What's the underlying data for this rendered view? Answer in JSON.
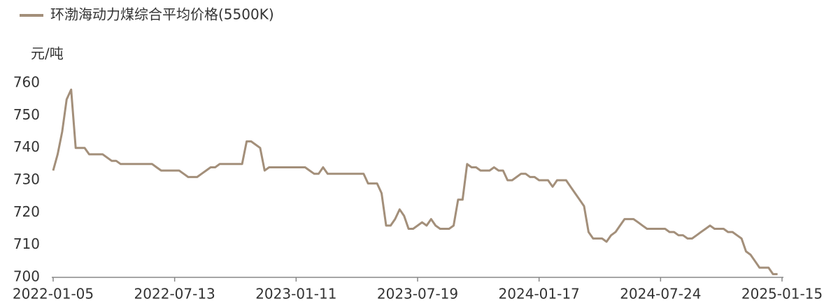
{
  "chart_data": {
    "type": "line",
    "y_label": "元/吨",
    "categories": [
      "2022-01-05",
      null,
      null,
      null,
      null,
      null,
      null,
      null,
      null,
      null,
      null,
      null,
      null,
      null,
      null,
      null,
      null,
      null,
      null,
      null,
      null,
      null,
      null,
      null,
      null,
      null,
      null,
      "2022-07-13",
      null,
      null,
      null,
      null,
      null,
      null,
      null,
      null,
      null,
      null,
      null,
      null,
      null,
      null,
      null,
      null,
      null,
      null,
      null,
      null,
      null,
      null,
      null,
      null,
      null,
      null,
      "2023-01-11",
      null,
      null,
      null,
      null,
      null,
      null,
      null,
      null,
      null,
      null,
      null,
      null,
      null,
      null,
      null,
      null,
      null,
      null,
      null,
      null,
      null,
      null,
      null,
      null,
      null,
      null,
      "2023-07-19",
      null,
      null,
      null,
      null,
      null,
      null,
      null,
      null,
      null,
      null,
      null,
      null,
      null,
      null,
      null,
      null,
      null,
      null,
      null,
      null,
      null,
      null,
      null,
      null,
      null,
      null,
      "2024-01-17",
      null,
      null,
      null,
      null,
      null,
      null,
      null,
      null,
      null,
      null,
      null,
      null,
      null,
      null,
      null,
      null,
      null,
      null,
      null,
      null,
      null,
      null,
      null,
      null,
      null,
      null,
      "2024-07-24",
      null,
      null,
      null,
      null,
      null,
      null,
      null,
      null,
      null,
      null,
      null,
      null,
      null,
      null,
      null,
      null,
      null,
      null,
      null,
      null,
      null,
      null,
      null,
      null,
      null,
      null,
      "2025-01-15"
    ],
    "series": [
      {
        "name": "环渤海动力煤综合平均价格(5500K)",
        "color": "#a38f7a",
        "values": [
          733,
          738,
          745,
          755,
          758,
          740,
          740,
          740,
          738,
          738,
          738,
          738,
          737,
          736,
          736,
          735,
          735,
          735,
          735,
          735,
          735,
          735,
          735,
          734,
          733,
          733,
          733,
          733,
          733,
          732,
          731,
          731,
          731,
          732,
          733,
          734,
          734,
          735,
          735,
          735,
          735,
          735,
          735,
          742,
          742,
          741,
          740,
          733,
          734,
          734,
          734,
          734,
          734,
          734,
          734,
          734,
          734,
          733,
          732,
          732,
          734,
          732,
          732,
          732,
          732,
          732,
          732,
          732,
          732,
          732,
          729,
          729,
          729,
          726,
          716,
          716,
          718,
          721,
          719,
          715,
          715,
          716,
          717,
          716,
          718,
          716,
          715,
          715,
          715,
          716,
          724,
          724,
          735,
          734,
          734,
          733,
          733,
          733,
          734,
          733,
          733,
          730,
          730,
          731,
          732,
          732,
          731,
          731,
          730,
          730,
          730,
          728,
          730,
          730,
          730,
          728,
          726,
          724,
          722,
          714,
          712,
          712,
          712,
          711,
          713,
          714,
          716,
          718,
          718,
          718,
          717,
          716,
          715,
          715,
          715,
          715,
          715,
          714,
          714,
          713,
          713,
          712,
          712,
          713,
          714,
          715,
          716,
          715,
          715,
          715,
          714,
          714,
          713,
          712,
          708,
          707,
          705,
          703,
          703,
          703,
          701,
          701,
          null
        ]
      }
    ],
    "ylim": [
      700,
      760
    ],
    "yticks": [
      700,
      710,
      720,
      730,
      740,
      750,
      760
    ],
    "grid": false,
    "legend": "top-left"
  }
}
